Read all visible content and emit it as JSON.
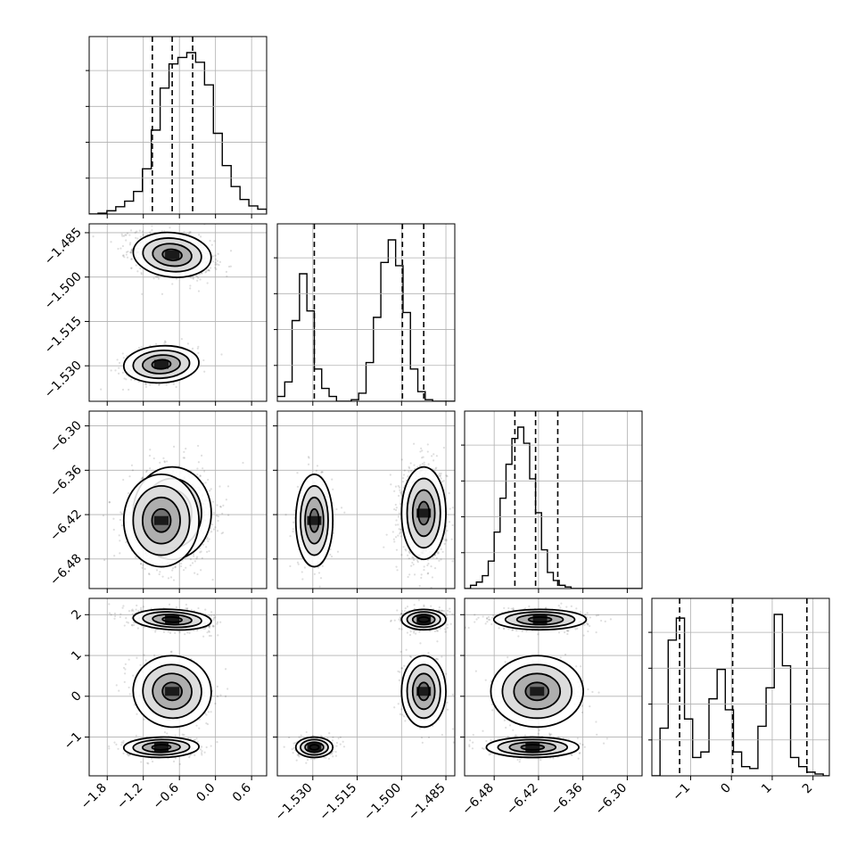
{
  "chart_data": {
    "type": "corner",
    "title": "",
    "parameters": [
      {
        "name": "",
        "range": [
          -2.1,
          0.85
        ],
        "ticks": [
          -1.8,
          -1.2,
          -0.6,
          0.0,
          0.6
        ],
        "tick_labels": [
          "−1.8",
          "−1.2",
          "−0.6",
          "0.0",
          "0.6"
        ],
        "quantiles": [
          -1.05,
          -0.72,
          -0.38
        ],
        "histogram": {
          "edges_start": -2.1,
          "bin_width": 0.1475,
          "counts": [
            0.0,
            0.005,
            0.02,
            0.045,
            0.08,
            0.14,
            0.28,
            0.52,
            0.78,
            0.93,
            0.97,
            1.0,
            0.94,
            0.8,
            0.5,
            0.3,
            0.17,
            0.09,
            0.05,
            0.03,
            0.01
          ]
        }
      },
      {
        "name": "",
        "range": [
          -1.542,
          -1.482
        ],
        "ticks": [
          -1.53,
          -1.515,
          -1.5,
          -1.485
        ],
        "tick_labels": [
          "−1.530",
          "−1.515",
          "−1.500",
          "−1.485"
        ],
        "quantiles": [
          -1.5295,
          -1.4997,
          -1.4925
        ],
        "histogram": {
          "edges_start": -1.542,
          "bin_width": 0.0025,
          "counts": [
            0.03,
            0.12,
            0.5,
            0.79,
            0.56,
            0.2,
            0.08,
            0.03,
            0.0,
            0.0,
            0.01,
            0.05,
            0.24,
            0.52,
            0.86,
            1.0,
            0.84,
            0.55,
            0.2,
            0.06,
            0.01,
            0.0,
            0.0,
            0.0
          ]
        }
      },
      {
        "name": "",
        "range": [
          -6.52,
          -6.28
        ],
        "ticks": [
          -6.48,
          -6.42,
          -6.36,
          -6.3
        ],
        "tick_labels": [
          "−6.48",
          "−6.42",
          "−6.36",
          "−6.30"
        ],
        "quantiles": [
          -6.452,
          -6.424,
          -6.394
        ],
        "histogram": {
          "edges_start": -6.52,
          "bin_width": 0.008,
          "counts": [
            0.0,
            0.02,
            0.04,
            0.08,
            0.17,
            0.35,
            0.56,
            0.77,
            0.93,
            1.0,
            0.9,
            0.68,
            0.47,
            0.24,
            0.1,
            0.05,
            0.02,
            0.01,
            0.0,
            0.0,
            0.0,
            0.0,
            0.0,
            0.0,
            0.0,
            0.0,
            0.0,
            0.0,
            0.0,
            0.0
          ]
        }
      },
      {
        "name": "",
        "range": [
          -1.95,
          2.4
        ],
        "ticks": [
          -1,
          0,
          1,
          2
        ],
        "tick_labels": [
          "−1",
          "0",
          "1",
          "2"
        ],
        "quantiles": [
          -1.27,
          0.03,
          1.85
        ],
        "histogram": {
          "edges_start": -1.95,
          "bin_width": 0.2,
          "counts": [
            0.0,
            0.26,
            0.74,
            0.86,
            0.31,
            0.1,
            0.13,
            0.42,
            0.58,
            0.36,
            0.13,
            0.05,
            0.04,
            0.27,
            0.48,
            0.88,
            0.6,
            0.1,
            0.05,
            0.02,
            0.01,
            0.0
          ]
        }
      }
    ],
    "modes": [
      {
        "weight": 0.5,
        "mean": [
          -0.72,
          -1.4925,
          -6.418,
          1.88
        ],
        "sd": [
          0.26,
          0.003,
          0.025,
          0.1
        ],
        "rho01": -0.3,
        "rho03": -0.3
      },
      {
        "weight": 0.22,
        "mean": [
          -0.72,
          -1.4925,
          -6.422,
          0.12
        ],
        "sd": [
          0.26,
          0.003,
          0.025,
          0.35
        ],
        "rho01": -0.3,
        "rho03": -0.2
      },
      {
        "weight": 0.28,
        "mean": [
          -0.9,
          -1.5295,
          -6.428,
          -1.25
        ],
        "sd": [
          0.25,
          0.0025,
          0.025,
          0.1
        ],
        "rho01": 0.2,
        "rho03": 0.1
      }
    ],
    "contour_levels_sigma": [
      0.5,
      1.0,
      1.5,
      2.0
    ],
    "grid": true,
    "axis_labels": {
      "x": [
        "",
        "",
        "",
        ""
      ],
      "y": [
        "",
        "",
        "",
        ""
      ]
    }
  }
}
